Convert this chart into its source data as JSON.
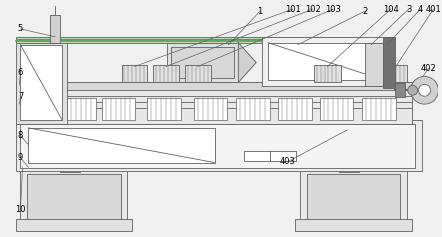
{
  "fig_width": 4.42,
  "fig_height": 2.37,
  "dpi": 100,
  "bg_color": "#f0f0f0",
  "lc": "#606060",
  "lw": 0.6,
  "ann_fs": 6.0
}
